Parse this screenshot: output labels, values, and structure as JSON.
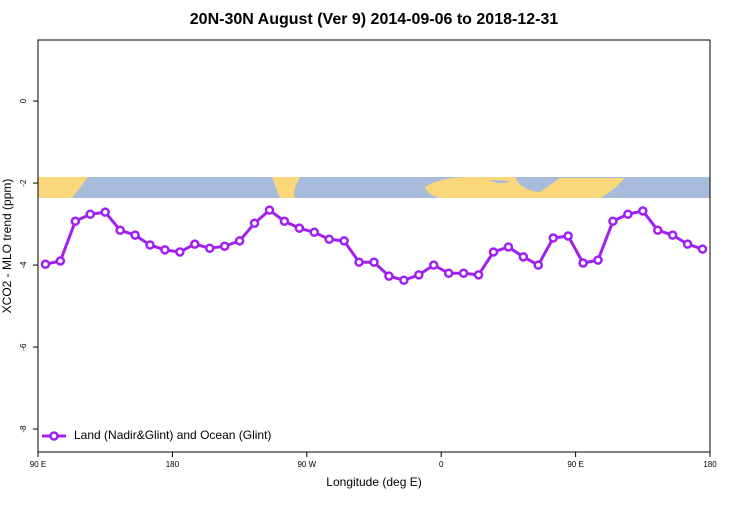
{
  "chart_data": {
    "type": "line",
    "title": "20N-30N August (Ver 9)   2014-09-06 to 2018-12-31",
    "xlabel": "Longitude (deg E)",
    "ylabel": "XCO2 - MLO trend (ppm)",
    "x": [
      95,
      105,
      115,
      125,
      135,
      145,
      155,
      165,
      175,
      185,
      195,
      205,
      215,
      225,
      235,
      245,
      255,
      265,
      275,
      285,
      295,
      305,
      315,
      325,
      335,
      345,
      355,
      365,
      375,
      385,
      395,
      405,
      415,
      425,
      435,
      445,
      455,
      465,
      475,
      485,
      495,
      505,
      515,
      525,
      535
    ],
    "series": [
      {
        "name": "Land (Nadir&Glint) and Ocean (Glint)",
        "color": "#a020f0",
        "values": [
          -3.98,
          -3.9,
          -2.93,
          -2.76,
          -2.71,
          -3.15,
          -3.27,
          -3.51,
          -3.63,
          -3.68,
          -3.49,
          -3.59,
          -3.54,
          -3.41,
          -2.98,
          -2.66,
          -2.93,
          -3.1,
          -3.2,
          -3.37,
          -3.41,
          -3.93,
          -3.93,
          -4.27,
          -4.37,
          -4.24,
          -4.0,
          -4.2,
          -4.2,
          -4.24,
          -3.68,
          -3.56,
          -3.8,
          -4.0,
          -3.34,
          -3.29,
          -3.95,
          -3.88,
          -2.93,
          -2.76,
          -2.68,
          -3.15,
          -3.27,
          -3.49,
          -3.61
        ]
      }
    ],
    "xlim": [
      90,
      540
    ],
    "xticks": [
      {
        "value": 90,
        "label": "90 E"
      },
      180,
      {
        "value": 270,
        "label": "90 W"
      },
      {
        "value": 360,
        "label": "0"
      },
      {
        "value": 450,
        "label": "90 E"
      },
      {
        "value": 540,
        "label": "180"
      }
    ],
    "ylim": [
      -8.56,
      1.49
    ],
    "yticks": [
      -8,
      -6,
      -4,
      -2,
      0
    ],
    "legend": "bottomleft"
  }
}
